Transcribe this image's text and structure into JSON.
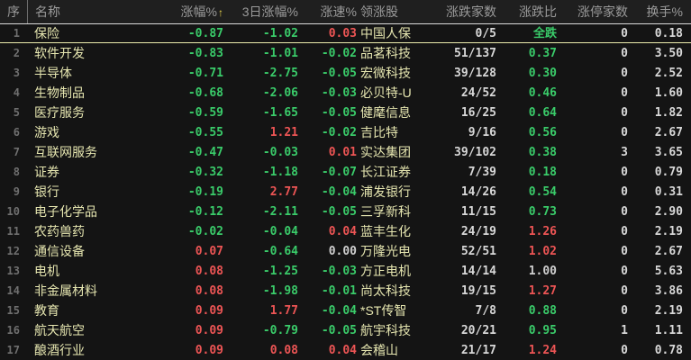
{
  "colors": {
    "background": "#141414",
    "header_background": "#1f1f1f",
    "header_text": "#9a9a9a",
    "name_text": "#e6e6b0",
    "seq_text": "#6f6f6f",
    "up_red": "#ee5555",
    "down_green": "#3acc6a",
    "neutral_white": "#cfcfcf",
    "sort_arrow_yellow": "#e8d44c",
    "selected_border_top": "#d9d9d9",
    "selected_border_bottom": "#ededad"
  },
  "sort": {
    "column": "涨幅%",
    "arrow": "↑"
  },
  "columns": [
    {
      "key": "seq",
      "label": "序"
    },
    {
      "key": "name",
      "label": "名称"
    },
    {
      "key": "chg",
      "label": "涨幅%"
    },
    {
      "key": "chg3",
      "label": "3日涨幅%"
    },
    {
      "key": "speed",
      "label": "涨速%"
    },
    {
      "key": "leader",
      "label": "领涨股"
    },
    {
      "key": "counts",
      "label": "涨跌家数"
    },
    {
      "key": "ratio",
      "label": "涨跌比"
    },
    {
      "key": "limit",
      "label": "涨停家数"
    },
    {
      "key": "turnover",
      "label": "换手%"
    }
  ],
  "selected_row_index": 0,
  "rows": [
    {
      "seq": "1",
      "name": "保险",
      "chg": "-0.87",
      "chg3": "-1.02",
      "speed": "0.03",
      "leader": "中国人保",
      "counts": "0/5",
      "ratio": "全跌",
      "limit": "0",
      "turnover": "0.18"
    },
    {
      "seq": "2",
      "name": "软件开发",
      "chg": "-0.83",
      "chg3": "-1.01",
      "speed": "-0.02",
      "leader": "品茗科技",
      "counts": "51/137",
      "ratio": "0.37",
      "limit": "0",
      "turnover": "3.50"
    },
    {
      "seq": "3",
      "name": "半导体",
      "chg": "-0.71",
      "chg3": "-2.75",
      "speed": "-0.05",
      "leader": "宏微科技",
      "counts": "39/128",
      "ratio": "0.30",
      "limit": "0",
      "turnover": "2.52"
    },
    {
      "seq": "4",
      "name": "生物制品",
      "chg": "-0.68",
      "chg3": "-2.06",
      "speed": "-0.03",
      "leader": "必贝特-U",
      "counts": "24/52",
      "ratio": "0.46",
      "limit": "0",
      "turnover": "1.60"
    },
    {
      "seq": "5",
      "name": "医疗服务",
      "chg": "-0.59",
      "chg3": "-1.65",
      "speed": "-0.05",
      "leader": "健麾信息",
      "counts": "16/25",
      "ratio": "0.64",
      "limit": "0",
      "turnover": "1.82"
    },
    {
      "seq": "6",
      "name": "游戏",
      "chg": "-0.55",
      "chg3": "1.21",
      "speed": "-0.02",
      "leader": "吉比特",
      "counts": "9/16",
      "ratio": "0.56",
      "limit": "0",
      "turnover": "2.67"
    },
    {
      "seq": "7",
      "name": "互联网服务",
      "chg": "-0.47",
      "chg3": "-0.03",
      "speed": "0.01",
      "leader": "实达集团",
      "counts": "39/102",
      "ratio": "0.38",
      "limit": "3",
      "turnover": "3.65"
    },
    {
      "seq": "8",
      "name": "证券",
      "chg": "-0.32",
      "chg3": "-1.18",
      "speed": "-0.07",
      "leader": "长江证券",
      "counts": "7/39",
      "ratio": "0.18",
      "limit": "0",
      "turnover": "0.79"
    },
    {
      "seq": "9",
      "name": "银行",
      "chg": "-0.19",
      "chg3": "2.77",
      "speed": "-0.04",
      "leader": "浦发银行",
      "counts": "14/26",
      "ratio": "0.54",
      "limit": "0",
      "turnover": "0.31"
    },
    {
      "seq": "10",
      "name": "电子化学品",
      "chg": "-0.12",
      "chg3": "-2.11",
      "speed": "-0.05",
      "leader": "三孚新科",
      "counts": "11/15",
      "ratio": "0.73",
      "limit": "0",
      "turnover": "2.90"
    },
    {
      "seq": "11",
      "name": "农药兽药",
      "chg": "-0.02",
      "chg3": "-0.04",
      "speed": "0.04",
      "leader": "蓝丰生化",
      "counts": "24/19",
      "ratio": "1.26",
      "limit": "0",
      "turnover": "2.19"
    },
    {
      "seq": "12",
      "name": "通信设备",
      "chg": "0.07",
      "chg3": "-0.64",
      "speed": "0.00",
      "leader": "万隆光电",
      "counts": "52/51",
      "ratio": "1.02",
      "limit": "0",
      "turnover": "2.67"
    },
    {
      "seq": "13",
      "name": "电机",
      "chg": "0.08",
      "chg3": "-1.25",
      "speed": "-0.03",
      "leader": "方正电机",
      "counts": "14/14",
      "ratio": "1.00",
      "limit": "0",
      "turnover": "5.63"
    },
    {
      "seq": "14",
      "name": "非金属材料",
      "chg": "0.08",
      "chg3": "-1.98",
      "speed": "-0.01",
      "leader": "尚太科技",
      "counts": "19/15",
      "ratio": "1.27",
      "limit": "0",
      "turnover": "3.86"
    },
    {
      "seq": "15",
      "name": "教育",
      "chg": "0.09",
      "chg3": "1.77",
      "speed": "-0.04",
      "leader": "*ST传智",
      "counts": "7/8",
      "ratio": "0.88",
      "limit": "0",
      "turnover": "2.19"
    },
    {
      "seq": "16",
      "name": "航天航空",
      "chg": "0.09",
      "chg3": "-0.79",
      "speed": "-0.05",
      "leader": "航宇科技",
      "counts": "20/21",
      "ratio": "0.95",
      "limit": "1",
      "turnover": "1.11"
    },
    {
      "seq": "17",
      "name": "酿酒行业",
      "chg": "0.09",
      "chg3": "0.08",
      "speed": "0.04",
      "leader": "会稽山",
      "counts": "21/17",
      "ratio": "1.24",
      "limit": "0",
      "turnover": "0.78"
    }
  ]
}
